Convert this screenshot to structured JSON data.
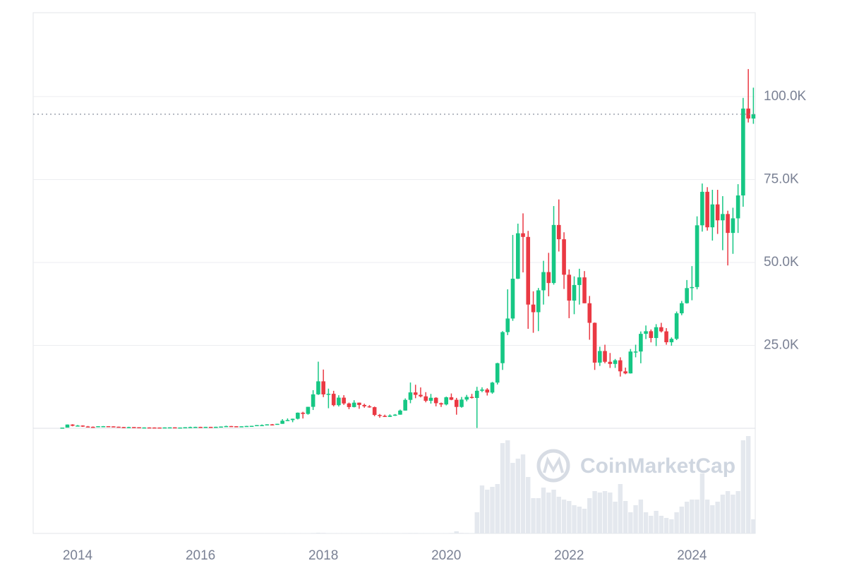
{
  "chart_data": {
    "type": "candlestick",
    "watermark": "CoinMarketCap",
    "up_color": "#16c784",
    "down_color": "#ea3943",
    "volume_color": "#e4e8ee",
    "grid": true,
    "xlim": [
      2013.276,
      2025.03
    ],
    "xticks": [
      2014,
      2016,
      2018,
      2020,
      2022,
      2024
    ],
    "ylim": [
      0,
      125300
    ],
    "yticks": [
      {
        "value": 25000,
        "label": "25.0K"
      },
      {
        "value": 50000,
        "label": "50.0K"
      },
      {
        "value": 75000,
        "label": "75.0K"
      },
      {
        "value": 100000,
        "label": "100.0K"
      }
    ],
    "volume_ylim": [
      0,
      2160
    ],
    "x": [
      2013.75,
      2013.833,
      2013.917,
      2014,
      2014.083,
      2014.167,
      2014.25,
      2014.333,
      2014.417,
      2014.5,
      2014.583,
      2014.667,
      2014.75,
      2014.833,
      2014.917,
      2015,
      2015.083,
      2015.167,
      2015.25,
      2015.333,
      2015.417,
      2015.5,
      2015.583,
      2015.667,
      2015.75,
      2015.833,
      2015.917,
      2016,
      2016.083,
      2016.167,
      2016.25,
      2016.333,
      2016.417,
      2016.5,
      2016.583,
      2016.667,
      2016.75,
      2016.833,
      2016.917,
      2017,
      2017.083,
      2017.167,
      2017.25,
      2017.333,
      2017.417,
      2017.5,
      2017.583,
      2017.667,
      2017.75,
      2017.833,
      2017.917,
      2018,
      2018.083,
      2018.167,
      2018.25,
      2018.333,
      2018.417,
      2018.5,
      2018.583,
      2018.667,
      2018.75,
      2018.833,
      2018.917,
      2019,
      2019.083,
      2019.167,
      2019.25,
      2019.333,
      2019.417,
      2019.5,
      2019.583,
      2019.667,
      2019.75,
      2019.833,
      2019.917,
      2020,
      2020.083,
      2020.167,
      2020.25,
      2020.333,
      2020.417,
      2020.5,
      2020.583,
      2020.667,
      2020.75,
      2020.833,
      2020.917,
      2021,
      2021.083,
      2021.167,
      2021.25,
      2021.333,
      2021.417,
      2021.5,
      2021.583,
      2021.667,
      2021.75,
      2021.833,
      2021.917,
      2022,
      2022.083,
      2022.167,
      2022.25,
      2022.333,
      2022.417,
      2022.5,
      2022.583,
      2022.667,
      2022.75,
      2022.833,
      2022.917,
      2023,
      2023.083,
      2023.167,
      2023.25,
      2023.333,
      2023.417,
      2023.5,
      2023.583,
      2023.667,
      2023.75,
      2023.833,
      2023.917,
      2024,
      2024.083,
      2024.167,
      2024.25,
      2024.333,
      2024.417,
      2024.5,
      2024.583,
      2024.667,
      2024.75,
      2024.833,
      2024.917,
      2025
    ],
    "open": [
      123,
      204,
      1130,
      754,
      830,
      550,
      455,
      450,
      630,
      640,
      586,
      478,
      387,
      338,
      378,
      320,
      217,
      254,
      244,
      236,
      230,
      263,
      284,
      230,
      236,
      314,
      377,
      430,
      368,
      437,
      416,
      448,
      531,
      673,
      624,
      575,
      609,
      700,
      742,
      963,
      970,
      1190,
      1070,
      1348,
      2286,
      2480,
      2875,
      4700,
      4340,
      6470,
      10230,
      14160,
      10220,
      10400,
      6970,
      9240,
      7490,
      6400,
      7730,
      7040,
      6630,
      6370,
      4020,
      3740,
      3460,
      3850,
      4110,
      5350,
      8570,
      10820,
      10090,
      9630,
      8290,
      9200,
      7570,
      7190,
      9350,
      8600,
      6440,
      8660,
      9460,
      9140,
      11320,
      11680,
      10780,
      13780,
      19630,
      29000,
      33100,
      45100,
      58800,
      57700,
      37300,
      35000,
      41600,
      47100,
      43800,
      61300,
      57000,
      46300,
      38500,
      43200,
      45500,
      37700,
      31800,
      19800,
      23300,
      20050,
      19400,
      20500,
      17170,
      16550,
      23140,
      23150,
      28480,
      29270,
      27220,
      30480,
      29230,
      25940,
      26970,
      34670,
      37720,
      42270,
      42580,
      61200,
      71300,
      60600,
      67500,
      62700,
      64600,
      58900,
      63300,
      70200,
      96400,
      93400
    ],
    "high": [
      215,
      1156,
      1240,
      1000,
      900,
      700,
      550,
      630,
      680,
      650,
      600,
      490,
      420,
      460,
      380,
      320,
      265,
      300,
      262,
      248,
      268,
      315,
      284,
      245,
      335,
      495,
      465,
      460,
      440,
      440,
      467,
      550,
      778,
      704,
      626,
      627,
      740,
      756,
      980,
      1150,
      1210,
      1290,
      1350,
      2760,
      2980,
      2920,
      4770,
      4975,
      6470,
      11500,
      20090,
      17710,
      11960,
      11300,
      9970,
      9990,
      7750,
      8470,
      7760,
      7410,
      7000,
      6550,
      4310,
      4110,
      4210,
      4300,
      5640,
      9010,
      13800,
      13130,
      12320,
      10900,
      10370,
      9370,
      7750,
      9550,
      10500,
      9170,
      9440,
      10070,
      10380,
      12500,
      12360,
      12100,
      14000,
      19750,
      29300,
      41900,
      58300,
      61700,
      64800,
      59500,
      41300,
      42300,
      50500,
      52900,
      67000,
      69000,
      59100,
      47900,
      45800,
      48100,
      47400,
      39900,
      31900,
      24600,
      25200,
      22700,
      20900,
      21400,
      18300,
      23900,
      25200,
      29200,
      31000,
      29800,
      31400,
      31800,
      30200,
      27400,
      35200,
      38400,
      44700,
      48900,
      63900,
      73800,
      72700,
      71900,
      71900,
      70000,
      65600,
      66500,
      73600,
      99600,
      108300,
      102700
    ],
    "low": [
      118,
      206,
      600,
      740,
      420,
      440,
      340,
      440,
      550,
      570,
      440,
      380,
      290,
      320,
      310,
      170,
      212,
      236,
      212,
      226,
      220,
      255,
      199,
      225,
      235,
      300,
      354,
      355,
      365,
      394,
      413,
      440,
      530,
      620,
      540,
      570,
      605,
      694,
      740,
      755,
      940,
      890,
      1060,
      1348,
      2300,
      1830,
      2670,
      2950,
      4100,
      5520,
      10050,
      9400,
      6050,
      6600,
      6560,
      7060,
      5760,
      6300,
      5880,
      6200,
      6200,
      3650,
      3190,
      3400,
      3400,
      3730,
      4100,
      5330,
      7560,
      9070,
      9320,
      7830,
      7450,
      6620,
      6430,
      6910,
      8460,
      4100,
      6200,
      8130,
      8980,
      100,
      10900,
      9880,
      10400,
      13200,
      17600,
      28100,
      32400,
      45000,
      47000,
      30000,
      28800,
      29300,
      37300,
      39800,
      43300,
      53300,
      42000,
      33200,
      34400,
      37300,
      37700,
      26700,
      17600,
      18800,
      19600,
      18200,
      18200,
      15600,
      16300,
      16500,
      21400,
      19600,
      26900,
      25900,
      24800,
      28900,
      25200,
      24900,
      26600,
      34100,
      37600,
      38600,
      41900,
      59300,
      59600,
      56600,
      58600,
      53700,
      49100,
      52600,
      58900,
      66800,
      92200,
      91800
    ],
    "close": [
      204,
      1130,
      754,
      830,
      550,
      455,
      450,
      630,
      640,
      586,
      478,
      387,
      338,
      378,
      320,
      217,
      254,
      244,
      236,
      230,
      263,
      284,
      230,
      236,
      314,
      377,
      430,
      368,
      437,
      416,
      448,
      531,
      673,
      624,
      575,
      609,
      700,
      742,
      963,
      970,
      1190,
      1070,
      1348,
      2286,
      2480,
      2875,
      4700,
      4340,
      6470,
      10230,
      14160,
      10220,
      10400,
      6970,
      9240,
      7490,
      6400,
      7730,
      7040,
      6630,
      6370,
      4020,
      3740,
      3460,
      3850,
      4110,
      5350,
      8570,
      10820,
      10090,
      9630,
      8290,
      9200,
      7570,
      7190,
      9350,
      8600,
      6440,
      8660,
      9460,
      9140,
      11320,
      11680,
      10780,
      13780,
      19630,
      29000,
      33100,
      45100,
      58800,
      57700,
      37300,
      35000,
      41600,
      47100,
      43800,
      61300,
      57000,
      46300,
      38500,
      43200,
      45500,
      37700,
      31800,
      19800,
      23300,
      20050,
      19400,
      20500,
      17170,
      16550,
      23140,
      23150,
      28480,
      29270,
      27220,
      30480,
      29230,
      25940,
      26970,
      34670,
      37720,
      42270,
      42580,
      61200,
      71300,
      60600,
      67500,
      62700,
      64600,
      58900,
      63300,
      70200,
      96400,
      93400,
      94700
    ],
    "volume": [
      0.05,
      0.3,
      0.4,
      0.2,
      0.2,
      0.1,
      0.1,
      0.1,
      0.1,
      0.1,
      0.1,
      0.1,
      0.1,
      0.1,
      0.1,
      0.1,
      0.1,
      0.1,
      0.1,
      0.1,
      0.1,
      0.1,
      0.1,
      0.1,
      0.2,
      0.5,
      0.3,
      0.2,
      0.2,
      0.1,
      0.1,
      0.2,
      0.4,
      0.3,
      0.2,
      0.2,
      0.2,
      0.3,
      0.4,
      1,
      1,
      1,
      1,
      3,
      4,
      3,
      4,
      6,
      5,
      10,
      16,
      12,
      8,
      6,
      5,
      5,
      4,
      4,
      4,
      3,
      3,
      4,
      4,
      3,
      3,
      4,
      6,
      9,
      10,
      10,
      8,
      7,
      7,
      6,
      5,
      8,
      10,
      45,
      12,
      10,
      8,
      450,
      1020,
      930,
      990,
      1050,
      1920,
      1980,
      1500,
      1590,
      1680,
      1200,
      750,
      750,
      975,
      870,
      930,
      780,
      720,
      690,
      600,
      570,
      525,
      750,
      900,
      870,
      900,
      870,
      675,
      1050,
      690,
      450,
      600,
      720,
      450,
      375,
      480,
      375,
      330,
      300,
      450,
      570,
      675,
      720,
      720,
      1275,
      720,
      600,
      675,
      825,
      900,
      825,
      900,
      1980,
      2070,
      300
    ]
  }
}
